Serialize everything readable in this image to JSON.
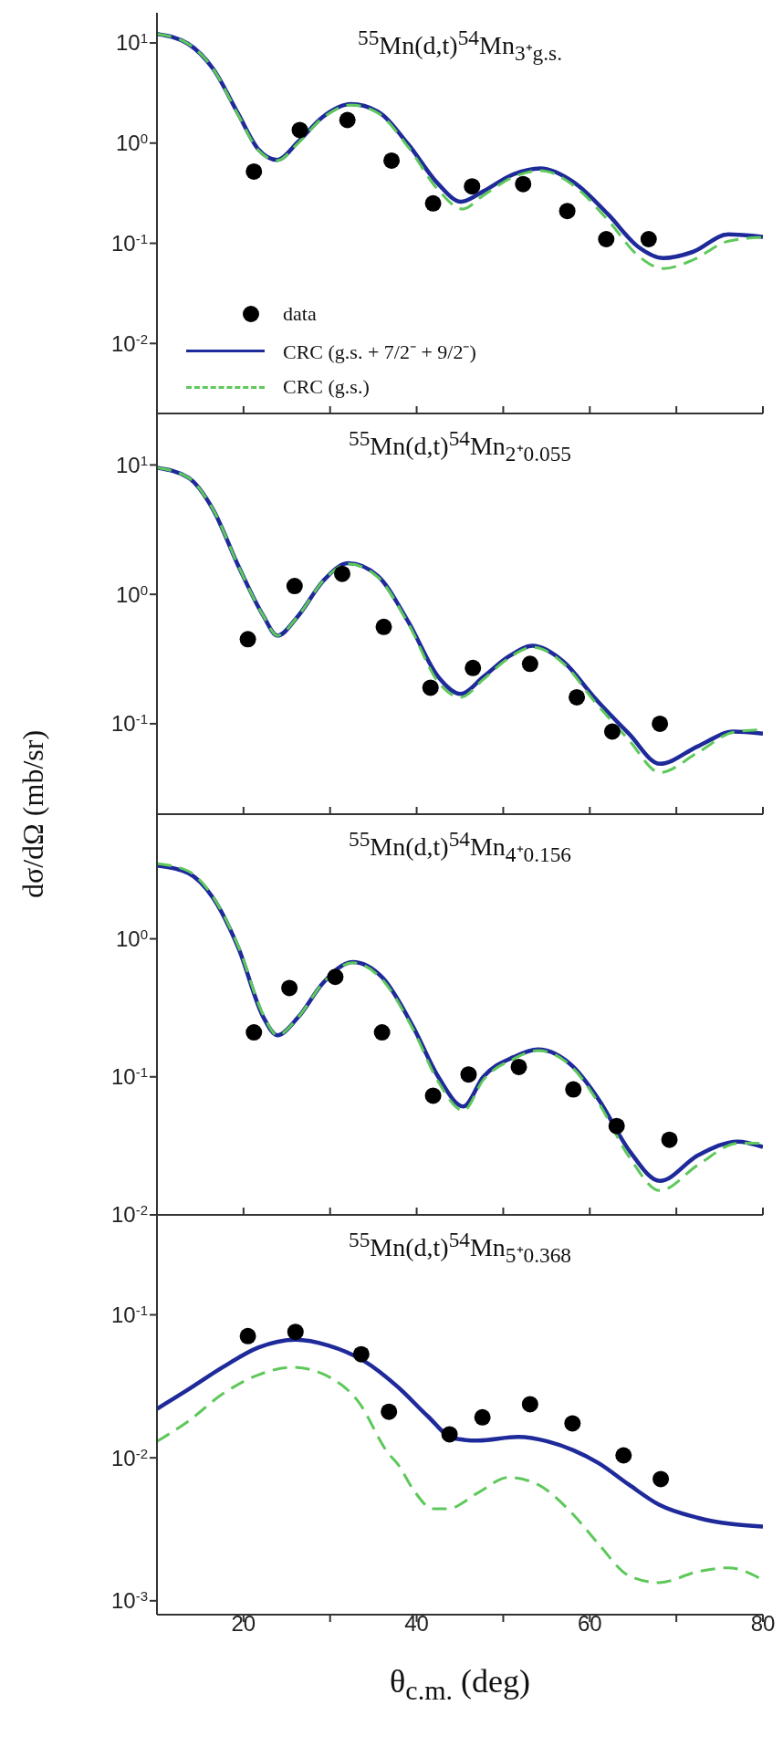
{
  "chart_data": [
    {
      "type": "line",
      "title": "$^{55}$Mn(d,t)$^{54}$Mn$_{3⁺g.s.}$",
      "xlim": [
        10,
        80
      ],
      "xticks": [
        20,
        {
          "value": 30,
          "label": null
        },
        40,
        {
          "value": 50,
          "label": null
        },
        60,
        {
          "value": 70,
          "label": null
        },
        80
      ],
      "ylim": [
        0.002,
        20
      ],
      "yticks": [
        {
          "value": 0.01,
          "label": "10$^{-2}$"
        },
        {
          "value": 0.1,
          "label": "10$^{-1}$"
        },
        {
          "value": 1,
          "label": "10$^{0}$"
        },
        {
          "value": 10,
          "label": "10$^{1}$"
        }
      ],
      "log": true,
      "tick_labels": "y",
      "legend": "bottom left",
      "series": [
        {
          "name": "data",
          "type": "scatter",
          "marker": "circle",
          "color": "#000000",
          "x": [
            21.2,
            26.5,
            32.0,
            37.1,
            41.9,
            46.4,
            52.3,
            57.4,
            61.9,
            66.8
          ],
          "values": [
            0.52,
            1.35,
            1.7,
            0.67,
            0.25,
            0.37,
            0.39,
            0.21,
            0.11,
            0.11
          ]
        },
        {
          "name": "CRC (g.s. + 7/2⁻ + 9/2⁻)",
          "line_style": "solid",
          "color": "#1f2a9a",
          "x": [
            10,
            13.6,
            16.5,
            19.4,
            21.7,
            23.9,
            26.3,
            29.2,
            32.4,
            35.5,
            39.0,
            42.5,
            45.1,
            47.7,
            51.2,
            54.3,
            58.1,
            62.1,
            65.6,
            68.5,
            71.9,
            76.0,
            80
          ],
          "values": [
            12.3,
            9.8,
            5.5,
            1.95,
            0.87,
            0.68,
            1.03,
            1.84,
            2.45,
            2.07,
            0.98,
            0.39,
            0.26,
            0.33,
            0.49,
            0.56,
            0.41,
            0.195,
            0.092,
            0.071,
            0.082,
            0.123,
            0.116
          ]
        },
        {
          "name": "CRC (g.s.)",
          "line_style": "dashed",
          "color": "#5ec85a",
          "x": [
            10,
            13.6,
            16.5,
            19.4,
            21.7,
            23.9,
            26.3,
            29.2,
            32.4,
            35.5,
            39.0,
            42.5,
            45.3,
            47.7,
            51.2,
            54.3,
            58.1,
            62.1,
            65.6,
            68.5,
            71.9,
            76.0,
            80
          ],
          "values": [
            12.3,
            9.8,
            5.5,
            1.9,
            0.85,
            0.67,
            1.0,
            1.8,
            2.4,
            2.0,
            0.92,
            0.34,
            0.22,
            0.3,
            0.46,
            0.53,
            0.38,
            0.17,
            0.075,
            0.056,
            0.068,
            0.105,
            0.115
          ]
        }
      ]
    },
    {
      "type": "line",
      "title": "$^{55}$Mn(d,t)$^{54}$Mn$_{2⁺0.055}$",
      "xlim": [
        10,
        80
      ],
      "xticks": [
        20,
        {
          "value": 30,
          "label": null
        },
        40,
        {
          "value": 50,
          "label": null
        },
        60,
        {
          "value": 70,
          "label": null
        },
        80
      ],
      "ylim": [
        0.02,
        25
      ],
      "yticks": [
        {
          "value": 0.1,
          "label": "10$^{-1}$"
        },
        {
          "value": 1,
          "label": "10$^{0}$"
        },
        {
          "value": 10,
          "label": "10$^{1}$"
        }
      ],
      "log": true,
      "tick_labels": "y",
      "ylabel": "dσ/dΩ  (mb/sr)",
      "series": [
        {
          "type": "scatter",
          "marker": "circle",
          "color": "#000000",
          "x": [
            20.5,
            25.9,
            31.4,
            36.2,
            41.6,
            46.5,
            53.1,
            58.5,
            62.6,
            68.1
          ],
          "values": [
            0.45,
            1.16,
            1.44,
            0.56,
            0.19,
            0.27,
            0.29,
            0.16,
            0.087,
            0.1
          ]
        },
        {
          "line_style": "solid",
          "color": "#1f2a9a",
          "x": [
            10,
            13.6,
            16.5,
            19.4,
            22.3,
            23.9,
            26.3,
            29.2,
            32.1,
            35.5,
            39.0,
            42.5,
            45.1,
            47.7,
            50.6,
            53.4,
            57.0,
            60.5,
            64.5,
            68.1,
            72.5,
            76.6,
            80
          ],
          "values": [
            9.5,
            8.0,
            4.5,
            1.66,
            0.68,
            0.48,
            0.68,
            1.27,
            1.74,
            1.39,
            0.62,
            0.23,
            0.17,
            0.23,
            0.33,
            0.4,
            0.3,
            0.16,
            0.084,
            0.049,
            0.067,
            0.087,
            0.084
          ]
        },
        {
          "line_style": "dashed",
          "color": "#5ec85a",
          "x": [
            10,
            13.6,
            16.5,
            19.4,
            22.3,
            23.9,
            26.3,
            29.2,
            32.1,
            35.5,
            39.0,
            42.5,
            45.1,
            47.7,
            50.6,
            53.4,
            57.0,
            60.5,
            64.5,
            68.1,
            72.5,
            76.6,
            80
          ],
          "values": [
            9.5,
            8.0,
            4.5,
            1.66,
            0.68,
            0.48,
            0.68,
            1.27,
            1.72,
            1.36,
            0.6,
            0.21,
            0.16,
            0.22,
            0.32,
            0.39,
            0.29,
            0.15,
            0.075,
            0.042,
            0.06,
            0.086,
            0.09
          ]
        }
      ]
    },
    {
      "type": "line",
      "title": "$^{55}$Mn(d,t)$^{54}$Mn$_{4⁺0.156}$",
      "xlim": [
        10,
        80
      ],
      "xticks": [
        20,
        {
          "value": 30,
          "label": null
        },
        40,
        {
          "value": 50,
          "label": null
        },
        60,
        {
          "value": 70,
          "label": null
        },
        80
      ],
      "ylim": [
        0.01,
        8
      ],
      "yticks": [
        {
          "value": 0.01,
          "label": "10$^{-2}$"
        },
        {
          "value": 0.1,
          "label": "10$^{-1}$"
        },
        {
          "value": 1,
          "label": "10$^{0}$"
        }
      ],
      "log": true,
      "tick_labels": "y",
      "series": [
        {
          "type": "scatter",
          "marker": "circle",
          "color": "#000000",
          "x": [
            21.2,
            25.3,
            30.6,
            36.0,
            41.9,
            46.0,
            51.8,
            58.1,
            63.1,
            69.2
          ],
          "values": [
            0.21,
            0.44,
            0.53,
            0.21,
            0.073,
            0.104,
            0.118,
            0.081,
            0.044,
            0.035
          ]
        },
        {
          "line_style": "solid",
          "color": "#1f2a9a",
          "x": [
            10,
            13.6,
            16.5,
            19.4,
            22.3,
            23.9,
            26.3,
            29.2,
            32.6,
            36.1,
            39.6,
            42.5,
            45.4,
            47.7,
            51.2,
            54.0,
            58.1,
            61.0,
            64.6,
            68.1,
            72.5,
            77.1,
            80
          ],
          "values": [
            3.4,
            3.0,
            1.97,
            0.86,
            0.27,
            0.2,
            0.27,
            0.48,
            0.68,
            0.52,
            0.23,
            0.1,
            0.061,
            0.1,
            0.139,
            0.158,
            0.118,
            0.069,
            0.029,
            0.0176,
            0.027,
            0.034,
            0.031
          ]
        },
        {
          "line_style": "dashed",
          "color": "#5ec85a",
          "x": [
            10,
            13.6,
            16.5,
            19.4,
            22.3,
            23.9,
            26.3,
            29.2,
            32.6,
            36.1,
            39.6,
            42.5,
            45.4,
            47.7,
            51.2,
            54.0,
            58.1,
            61.0,
            64.6,
            68.1,
            72.5,
            77.1,
            80
          ],
          "values": [
            3.5,
            3.1,
            2.0,
            0.88,
            0.28,
            0.2,
            0.27,
            0.48,
            0.67,
            0.5,
            0.22,
            0.092,
            0.057,
            0.095,
            0.135,
            0.155,
            0.115,
            0.065,
            0.026,
            0.015,
            0.023,
            0.033,
            0.033
          ]
        }
      ]
    },
    {
      "type": "line",
      "title": "$^{55}$Mn(d,t)$^{54}$Mn$_{5⁺0.368}$",
      "xlabel": "θ$_{c.m.}$ (deg)",
      "xlim": [
        10,
        80
      ],
      "xticks": [
        20,
        {
          "value": 30,
          "label": null
        },
        40,
        {
          "value": 50,
          "label": null
        },
        60,
        {
          "value": 70,
          "label": null
        },
        80
      ],
      "ylim": [
        0.0008,
        0.5
      ],
      "yticks": [
        {
          "value": 0.001,
          "label": "10$^{-3}$"
        },
        {
          "value": 0.01,
          "label": "10$^{-2}$"
        },
        {
          "value": 0.1,
          "label": "10$^{-1}$"
        }
      ],
      "log": true,
      "series": [
        {
          "type": "scatter",
          "marker": "circle",
          "color": "#000000",
          "x": [
            20.5,
            26.0,
            33.6,
            36.8,
            43.8,
            47.6,
            53.1,
            58.0,
            63.9,
            68.2
          ],
          "values": [
            0.071,
            0.076,
            0.053,
            0.021,
            0.0146,
            0.0192,
            0.0237,
            0.0174,
            0.0104,
            0.0071
          ]
        },
        {
          "line_style": "solid",
          "color": "#1f2a9a",
          "x": [
            10,
            13.6,
            17.6,
            21.7,
            26.0,
            29.8,
            33.8,
            37.9,
            41.3,
            44.2,
            47.1,
            51.7,
            55.2,
            58.1,
            61.0,
            64.5,
            68.0,
            72.5,
            80
          ],
          "values": [
            0.022,
            0.03,
            0.043,
            0.059,
            0.067,
            0.061,
            0.048,
            0.031,
            0.0195,
            0.0137,
            0.0132,
            0.014,
            0.013,
            0.0113,
            0.0092,
            0.0065,
            0.0047,
            0.0038,
            0.0033
          ]
        },
        {
          "line_style": "dashed",
          "color": "#5ec85a",
          "x": [
            10,
            13.6,
            17.6,
            21.7,
            25.7,
            29.8,
            33.2,
            36.7,
            37.9,
            39.6,
            41.9,
            43.6,
            47.1,
            50.6,
            54.0,
            58.1,
            61.0,
            64.5,
            68.0,
            72.5,
            76.0,
            80
          ],
          "values": [
            0.013,
            0.018,
            0.028,
            0.038,
            0.043,
            0.037,
            0.025,
            0.0108,
            0.0089,
            0.006,
            0.0044,
            0.0044,
            0.0057,
            0.0073,
            0.0065,
            0.004,
            0.0025,
            0.0015,
            0.00134,
            0.0016,
            0.0017,
            0.0014
          ]
        }
      ]
    }
  ]
}
